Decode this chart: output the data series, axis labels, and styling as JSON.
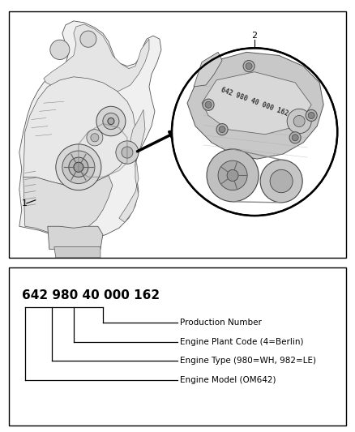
{
  "bg_color": "#ffffff",
  "border_color": "#000000",
  "engine_code": "642 980 40 000 162",
  "labels": [
    "Production Number",
    "Engine Plant Code (4=Berlin)",
    "Engine Type (980=WH, 982=LE)",
    "Engine Model (OM642)"
  ],
  "top_label_1": "1",
  "top_label_2": "2",
  "code_fontsize": 11,
  "label_fontsize": 7.5
}
